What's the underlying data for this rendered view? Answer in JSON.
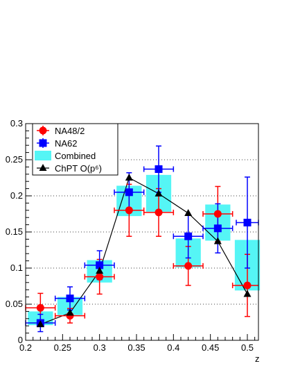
{
  "chart_data": {
    "type": "scatter",
    "title": "",
    "xlabel": "z",
    "ylabel": "",
    "xlim": [
      0.2,
      0.515
    ],
    "ylim": [
      0,
      0.3
    ],
    "grid": "dotted horizontal at major y ticks",
    "legend_position": "top-left",
    "x_ticks": [
      "0.2",
      "0.25",
      "0.3",
      "0.35",
      "0.4",
      "0.45",
      "0.5"
    ],
    "y_ticks": [
      "0",
      "0.05",
      "0.1",
      "0.15",
      "0.2",
      "0.25",
      "0.3"
    ],
    "series": [
      {
        "name": "NA48/2",
        "marker": "circle",
        "color": "#ff0000",
        "points": [
          {
            "x": 0.22,
            "y": 0.045,
            "xerr": 0.02,
            "yerr": 0.02
          },
          {
            "x": 0.26,
            "y": 0.034,
            "xerr": 0.02,
            "yerr": 0.01
          },
          {
            "x": 0.3,
            "y": 0.088,
            "xerr": 0.02,
            "yerr": 0.024
          },
          {
            "x": 0.34,
            "y": 0.18,
            "xerr": 0.02,
            "yerr": 0.036
          },
          {
            "x": 0.38,
            "y": 0.177,
            "xerr": 0.02,
            "yerr": 0.033
          },
          {
            "x": 0.42,
            "y": 0.103,
            "xerr": 0.02,
            "yerr": 0.027
          },
          {
            "x": 0.46,
            "y": 0.175,
            "xerr": 0.02,
            "yerr": 0.038
          },
          {
            "x": 0.5,
            "y": 0.076,
            "xerr": 0.02,
            "yerr": 0.043
          }
        ]
      },
      {
        "name": "NA62",
        "marker": "square",
        "color": "#0000ff",
        "points": [
          {
            "x": 0.22,
            "y": 0.024,
            "xerr": 0.02,
            "yerr": 0.012
          },
          {
            "x": 0.26,
            "y": 0.058,
            "xerr": 0.02,
            "yerr": 0.016
          },
          {
            "x": 0.3,
            "y": 0.104,
            "xerr": 0.02,
            "yerr": 0.02
          },
          {
            "x": 0.34,
            "y": 0.205,
            "xerr": 0.02,
            "yerr": 0.027
          },
          {
            "x": 0.38,
            "y": 0.237,
            "xerr": 0.02,
            "yerr": 0.032
          },
          {
            "x": 0.42,
            "y": 0.144,
            "xerr": 0.02,
            "yerr": 0.03
          },
          {
            "x": 0.46,
            "y": 0.155,
            "xerr": 0.02,
            "yerr": 0.034
          },
          {
            "x": 0.5,
            "y": 0.163,
            "xerr": 0.015,
            "yerr": 0.063
          }
        ]
      },
      {
        "name": "Combined",
        "marker": "band",
        "color": "#55f5f5",
        "boxes": [
          {
            "x0": 0.203,
            "x1": 0.237,
            "y0": 0.021,
            "y1": 0.04
          },
          {
            "x0": 0.243,
            "x1": 0.277,
            "y0": 0.035,
            "y1": 0.06
          },
          {
            "x0": 0.283,
            "x1": 0.317,
            "y0": 0.08,
            "y1": 0.111
          },
          {
            "x0": 0.323,
            "x1": 0.357,
            "y0": 0.172,
            "y1": 0.214
          },
          {
            "x0": 0.363,
            "x1": 0.397,
            "y0": 0.178,
            "y1": 0.229
          },
          {
            "x0": 0.403,
            "x1": 0.437,
            "y0": 0.101,
            "y1": 0.141
          },
          {
            "x0": 0.443,
            "x1": 0.477,
            "y0": 0.138,
            "y1": 0.188
          },
          {
            "x0": 0.483,
            "x1": 0.517,
            "y0": 0.069,
            "y1": 0.139
          }
        ]
      },
      {
        "name": "ChPT O(p⁶)",
        "marker": "triangle",
        "color": "#000000",
        "points": [
          {
            "x": 0.22,
            "y": 0.022
          },
          {
            "x": 0.26,
            "y": 0.038
          },
          {
            "x": 0.3,
            "y": 0.096
          },
          {
            "x": 0.34,
            "y": 0.225
          },
          {
            "x": 0.38,
            "y": 0.203
          },
          {
            "x": 0.42,
            "y": 0.176
          },
          {
            "x": 0.46,
            "y": 0.137
          },
          {
            "x": 0.5,
            "y": 0.064
          }
        ]
      }
    ]
  }
}
